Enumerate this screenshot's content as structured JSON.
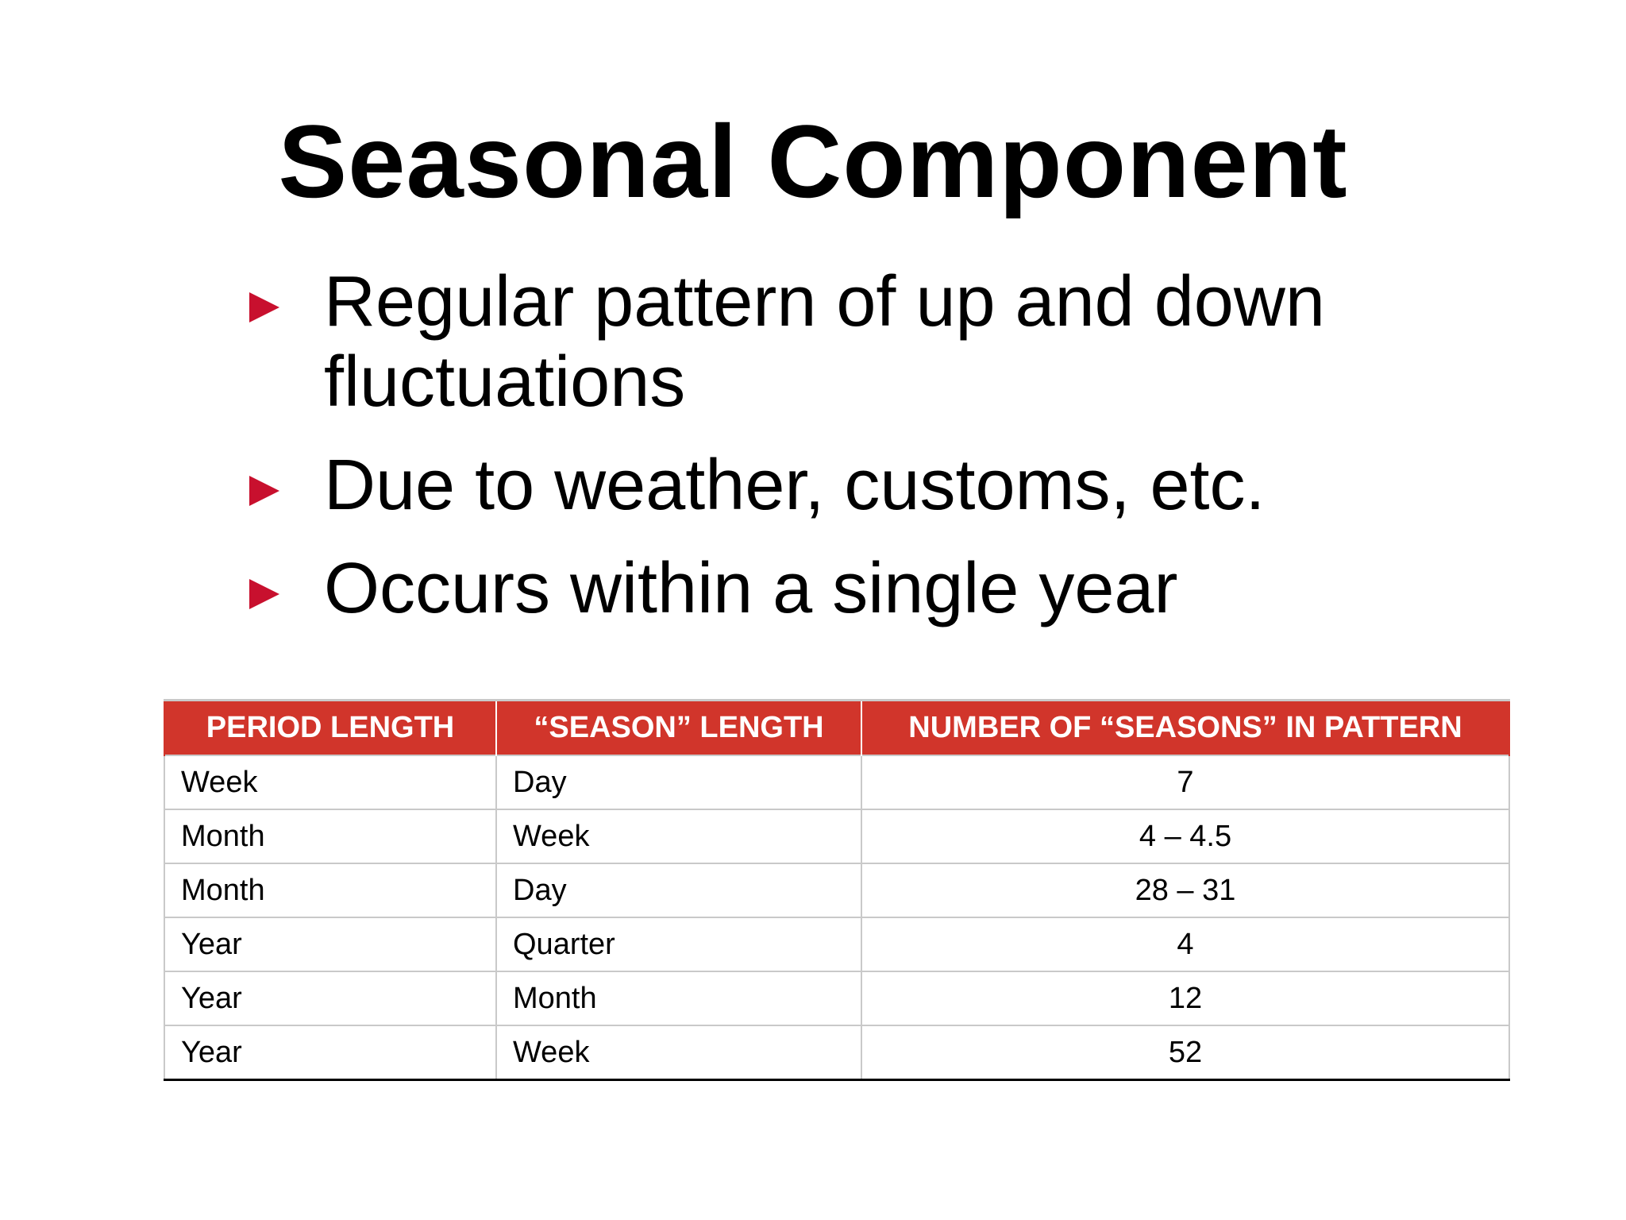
{
  "slide": {
    "title": "Seasonal Component",
    "bullets": [
      "Regular pattern of up and down fluctuations",
      "Due to weather, customs, etc.",
      "Occurs within a single year"
    ],
    "colors": {
      "bullet_marker": "#c8102e",
      "table_header": "#d1352b"
    },
    "table": {
      "headers": [
        "PERIOD LENGTH",
        "“SEASON” LENGTH",
        "NUMBER OF “SEASONS” IN PATTERN"
      ],
      "rows": [
        [
          "Week",
          "Day",
          "7"
        ],
        [
          "Month",
          "Week",
          "4 – 4.5"
        ],
        [
          "Month",
          "Day",
          "28 – 31"
        ],
        [
          "Year",
          "Quarter",
          "4"
        ],
        [
          "Year",
          "Month",
          "12"
        ],
        [
          "Year",
          "Week",
          "52"
        ]
      ]
    }
  }
}
